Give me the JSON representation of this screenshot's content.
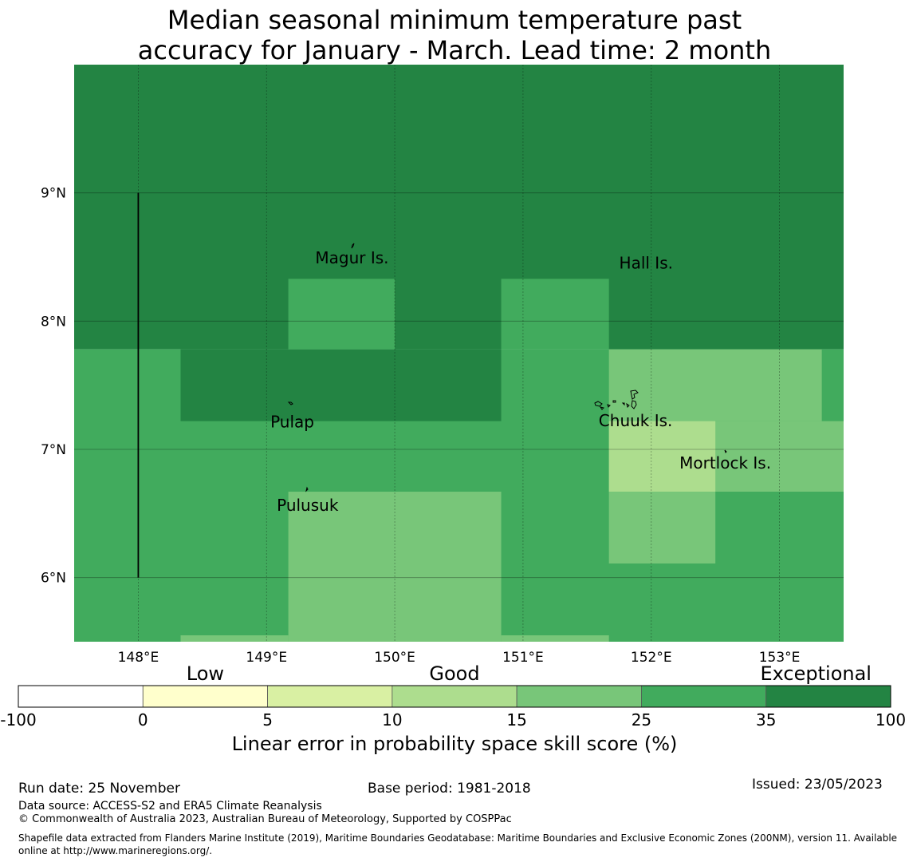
{
  "title": {
    "line1": "Median seasonal minimum temperature past",
    "line2": "accuracy for January - March. Lead time: 2 month"
  },
  "map": {
    "lon_range": [
      147.5,
      153.5
    ],
    "lat_range": [
      5.5,
      10.0
    ],
    "x_ticks": [
      {
        "value": 148,
        "label": "148°E"
      },
      {
        "value": 149,
        "label": "149°E"
      },
      {
        "value": 150,
        "label": "150°E"
      },
      {
        "value": 151,
        "label": "151°E"
      },
      {
        "value": 152,
        "label": "152°E"
      },
      {
        "value": 153,
        "label": "153°E"
      }
    ],
    "y_ticks": [
      {
        "value": 9,
        "label": "9°N"
      },
      {
        "value": 8,
        "label": "8°N"
      },
      {
        "value": 7,
        "label": "7°N"
      },
      {
        "value": 6,
        "label": "6°N"
      }
    ],
    "cells": [
      {
        "lon0": 147.5,
        "lon1": 153.5,
        "lat0": 7.78,
        "lat1": 10.0,
        "skill_class": "35-100",
        "color": "#238443"
      },
      {
        "lon0": 147.5,
        "lon1": 153.5,
        "lat0": 5.5,
        "lat1": 7.78,
        "skill_class": "25-35",
        "color": "#41ab5d"
      },
      {
        "lon0": 148.33,
        "lon1": 150.83,
        "lat0": 7.22,
        "lat1": 7.78,
        "skill_class": "35-100",
        "color": "#238443"
      },
      {
        "lon0": 149.17,
        "lon1": 150.0,
        "lat0": 7.78,
        "lat1": 8.33,
        "skill_class": "25-35",
        "color": "#41ab5d"
      },
      {
        "lon0": 150.83,
        "lon1": 151.67,
        "lat0": 7.78,
        "lat1": 8.33,
        "skill_class": "25-35",
        "color": "#41ab5d"
      },
      {
        "lon0": 151.67,
        "lon1": 153.33,
        "lat0": 7.22,
        "lat1": 7.78,
        "skill_class": "15-25",
        "color": "#78c679"
      },
      {
        "lon0": 151.67,
        "lon1": 153.5,
        "lat0": 6.67,
        "lat1": 7.22,
        "skill_class": "15-25",
        "color": "#78c679"
      },
      {
        "lon0": 151.67,
        "lon1": 152.5,
        "lat0": 6.67,
        "lat1": 7.22,
        "skill_class": "10-15",
        "color": "#addd8e"
      },
      {
        "lon0": 151.67,
        "lon1": 152.5,
        "lat0": 6.11,
        "lat1": 6.67,
        "skill_class": "15-25",
        "color": "#78c679"
      },
      {
        "lon0": 149.17,
        "lon1": 150.83,
        "lat0": 5.5,
        "lat1": 6.67,
        "skill_class": "15-25",
        "color": "#78c679"
      },
      {
        "lon0": 148.33,
        "lon1": 149.17,
        "lat0": 5.5,
        "lat1": 5.55,
        "skill_class": "15-25",
        "color": "#78c679"
      },
      {
        "lon0": 150.83,
        "lon1": 151.67,
        "lat0": 5.5,
        "lat1": 5.55,
        "skill_class": "15-25",
        "color": "#78c679"
      }
    ],
    "boundary_line": {
      "lon": 148.0,
      "lat0": 6.0,
      "lat1": 9.0
    },
    "places": [
      {
        "name": "Magur Is.",
        "lon": 149.38,
        "lat": 8.45
      },
      {
        "name": "Hall Is.",
        "lon": 151.75,
        "lat": 8.41
      },
      {
        "name": "Pulap",
        "lon": 149.03,
        "lat": 7.17
      },
      {
        "name": "Chuuk Is.",
        "lon": 151.59,
        "lat": 7.18
      },
      {
        "name": "Mortlock Is.",
        "lon": 152.22,
        "lat": 6.85
      },
      {
        "name": "Pulusuk",
        "lon": 149.08,
        "lat": 6.52
      }
    ]
  },
  "legend": {
    "category_labels": [
      {
        "label": "Low",
        "at": 1.5
      },
      {
        "label": "Good",
        "at": 3.5
      },
      {
        "label": "Exceptional",
        "at": 6.4
      }
    ],
    "bins": [
      {
        "from": -100,
        "to": 0,
        "color": "#ffffff"
      },
      {
        "from": 0,
        "to": 5,
        "color": "#ffffcc"
      },
      {
        "from": 5,
        "to": 10,
        "color": "#d9f0a3"
      },
      {
        "from": 10,
        "to": 15,
        "color": "#addd8e"
      },
      {
        "from": 15,
        "to": 25,
        "color": "#78c679"
      },
      {
        "from": 25,
        "to": 35,
        "color": "#41ab5d"
      },
      {
        "from": 35,
        "to": 100,
        "color": "#238443"
      }
    ],
    "tick_labels": [
      "-100",
      "0",
      "5",
      "10",
      "15",
      "25",
      "35",
      "100"
    ],
    "axis_label": "Linear error in probability space skill score (%)"
  },
  "footer": {
    "run_date": "Run date: 25 November",
    "base_period": "Base period: 1981-2018",
    "issued": "Issued: 23/05/2023",
    "data_source": "Data source: ACCESS-S2 and ERA5 Climate Reanalysis",
    "copyright": "© Commonwealth of Australia 2023, Australian Bureau of Meteorology, Supported by COSPPac",
    "shapefile": "Shapefile data extracted from Flanders Marine Institute (2019), Maritime Boundaries Geodatabase: Maritime Boundaries and Exclusive Economic Zones (200NM), version 11. Available online at http://www.marineregions.org/."
  }
}
